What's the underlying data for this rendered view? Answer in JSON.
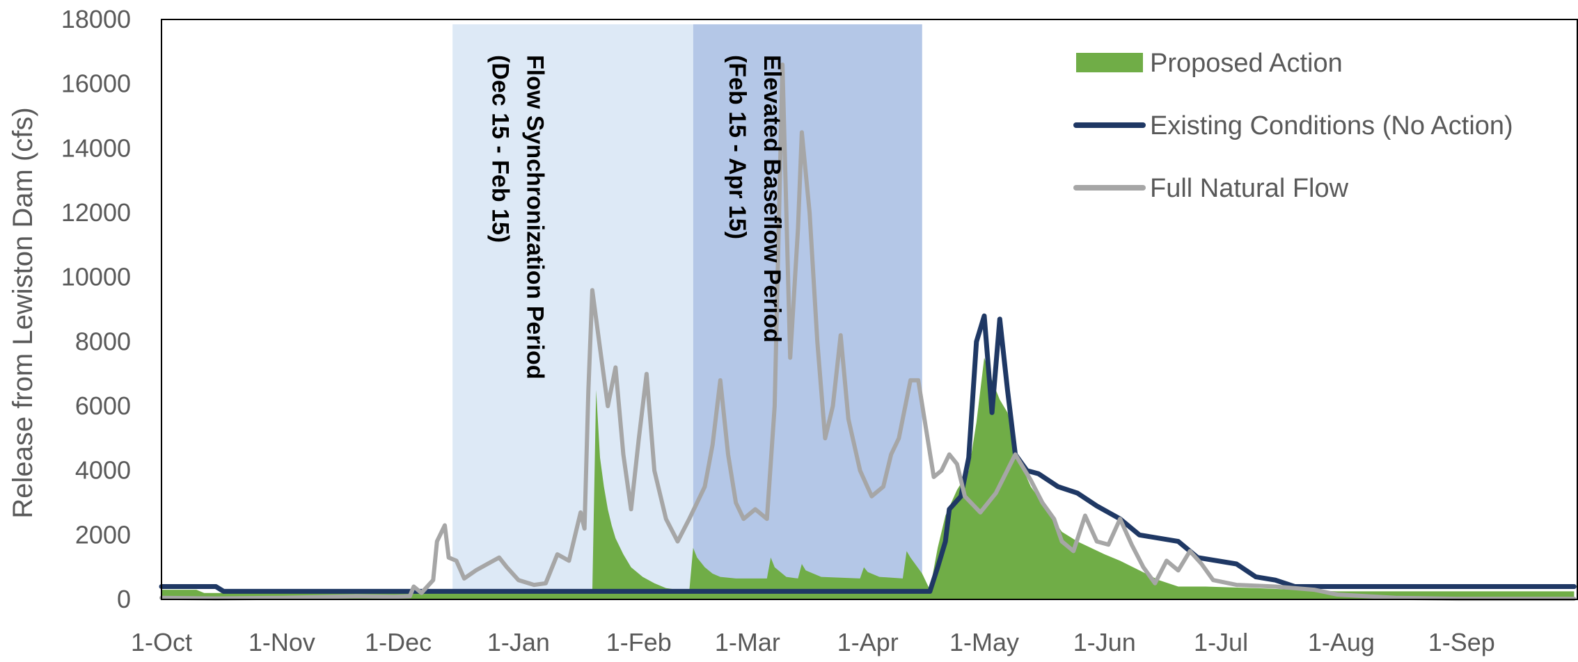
{
  "chart_data": {
    "type": "area",
    "title": "",
    "xlabel": "",
    "ylabel": "Release from Lewiston Dam (cfs)",
    "ylim": [
      0,
      18000
    ],
    "yticks": [
      0,
      2000,
      4000,
      6000,
      8000,
      10000,
      12000,
      14000,
      16000,
      18000
    ],
    "xlim": [
      "1-Oct",
      "30-Sep"
    ],
    "xtick_labels": [
      "1-Oct",
      "1-Nov",
      "1-Dec",
      "1-Jan",
      "1-Feb",
      "1-Mar",
      "1-Apr",
      "1-May",
      "1-Jun",
      "1-Jul",
      "1-Aug",
      "1-Sep"
    ],
    "grid": false,
    "legend_position": "top-right",
    "shaded_periods": [
      {
        "label_line1": "Flow Synchronization Period",
        "label_line2": "(Dec 15 - Feb 15)",
        "start": "15-Dec",
        "end": "15-Feb",
        "color": "#dde9f6"
      },
      {
        "label_line1": "Elevated Baseflow Period",
        "label_line2": "(Feb 15 - Apr 15)",
        "start": "15-Feb",
        "end": "15-Apr",
        "color": "#b4c7e7"
      }
    ],
    "series": [
      {
        "name": "Proposed Action",
        "kind": "area",
        "color": "#70ad47",
        "points": [
          [
            "1-Oct",
            300
          ],
          [
            "10-Oct",
            300
          ],
          [
            "12-Oct",
            200
          ],
          [
            "20-Jan",
            200
          ],
          [
            "21-Jan",
            6500
          ],
          [
            "22-Jan",
            4400
          ],
          [
            "23-Jan",
            3500
          ],
          [
            "24-Jan",
            2800
          ],
          [
            "25-Jan",
            2300
          ],
          [
            "26-Jan",
            1900
          ],
          [
            "28-Jan",
            1400
          ],
          [
            "30-Jan",
            1000
          ],
          [
            "2-Feb",
            700
          ],
          [
            "5-Feb",
            500
          ],
          [
            "8-Feb",
            350
          ],
          [
            "14-Feb",
            250
          ],
          [
            "15-Feb",
            1600
          ],
          [
            "16-Feb",
            1300
          ],
          [
            "18-Feb",
            1000
          ],
          [
            "20-Feb",
            800
          ],
          [
            "22-Feb",
            700
          ],
          [
            "26-Feb",
            650
          ],
          [
            "3-Mar",
            650
          ],
          [
            "6-Mar",
            650
          ],
          [
            "7-Mar",
            1300
          ],
          [
            "8-Mar",
            1000
          ],
          [
            "11-Mar",
            700
          ],
          [
            "14-Mar",
            650
          ],
          [
            "15-Mar",
            1100
          ],
          [
            "16-Mar",
            900
          ],
          [
            "20-Mar",
            700
          ],
          [
            "30-Mar",
            650
          ],
          [
            "31-Mar",
            1000
          ],
          [
            "1-Apr",
            850
          ],
          [
            "4-Apr",
            700
          ],
          [
            "10-Apr",
            650
          ],
          [
            "11-Apr",
            1500
          ],
          [
            "12-Apr",
            1300
          ],
          [
            "15-Apr",
            800
          ],
          [
            "17-Apr",
            300
          ],
          [
            "19-Apr",
            1600
          ],
          [
            "21-Apr",
            2600
          ],
          [
            "24-Apr",
            3400
          ],
          [
            "27-Apr",
            4000
          ],
          [
            "29-Apr",
            5500
          ],
          [
            "1-May",
            7500
          ],
          [
            "3-May",
            6800
          ],
          [
            "5-May",
            6200
          ],
          [
            "7-May",
            5800
          ],
          [
            "10-May",
            4300
          ],
          [
            "13-May",
            3500
          ],
          [
            "17-May",
            2800
          ],
          [
            "21-May",
            2100
          ],
          [
            "25-May",
            1800
          ],
          [
            "1-Jun",
            1400
          ],
          [
            "5-Jun",
            1200
          ],
          [
            "10-Jun",
            900
          ],
          [
            "15-Jun",
            600
          ],
          [
            "20-Jun",
            400
          ],
          [
            "27-Jun",
            400
          ],
          [
            "10-Jul",
            350
          ],
          [
            "20-Jul",
            300
          ],
          [
            "31-Jul",
            250
          ],
          [
            "30-Sep",
            250
          ]
        ]
      },
      {
        "name": "Existing Conditions (No Action)",
        "kind": "line",
        "color": "#1f3864",
        "points": [
          [
            "1-Oct",
            400
          ],
          [
            "15-Oct",
            400
          ],
          [
            "17-Oct",
            250
          ],
          [
            "17-Apr",
            250
          ],
          [
            "19-Apr",
            1000
          ],
          [
            "21-Apr",
            1800
          ],
          [
            "22-Apr",
            2800
          ],
          [
            "25-Apr",
            3200
          ],
          [
            "27-Apr",
            4400
          ],
          [
            "29-Apr",
            8000
          ],
          [
            "1-May",
            8800
          ],
          [
            "3-May",
            5800
          ],
          [
            "5-May",
            8700
          ],
          [
            "7-May",
            6500
          ],
          [
            "9-May",
            4500
          ],
          [
            "12-May",
            4000
          ],
          [
            "15-May",
            3900
          ],
          [
            "20-May",
            3500
          ],
          [
            "25-May",
            3300
          ],
          [
            "30-May",
            2900
          ],
          [
            "5-Jun",
            2500
          ],
          [
            "10-Jun",
            2000
          ],
          [
            "20-Jun",
            1800
          ],
          [
            "25-Jun",
            1300
          ],
          [
            "5-Jul",
            1100
          ],
          [
            "10-Jul",
            700
          ],
          [
            "15-Jul",
            600
          ],
          [
            "20-Jul",
            400
          ],
          [
            "31-Jul",
            400
          ],
          [
            "30-Sep",
            400
          ]
        ]
      },
      {
        "name": "Full Natural Flow",
        "kind": "line",
        "color": "#a6a6a6",
        "points": [
          [
            "1-Oct",
            50
          ],
          [
            "15-Oct",
            30
          ],
          [
            "1-Nov",
            50
          ],
          [
            "20-Nov",
            100
          ],
          [
            "30-Nov",
            80
          ],
          [
            "4-Dec",
            100
          ],
          [
            "5-Dec",
            400
          ],
          [
            "7-Dec",
            200
          ],
          [
            "10-Dec",
            600
          ],
          [
            "11-Dec",
            1800
          ],
          [
            "13-Dec",
            2300
          ],
          [
            "14-Dec",
            1300
          ],
          [
            "16-Dec",
            1200
          ],
          [
            "18-Dec",
            650
          ],
          [
            "21-Dec",
            900
          ],
          [
            "24-Dec",
            1100
          ],
          [
            "27-Dec",
            1300
          ],
          [
            "29-Dec",
            1000
          ],
          [
            "1-Jan",
            600
          ],
          [
            "5-Jan",
            450
          ],
          [
            "8-Jan",
            500
          ],
          [
            "11-Jan",
            1400
          ],
          [
            "14-Jan",
            1200
          ],
          [
            "17-Jan",
            2700
          ],
          [
            "18-Jan",
            2200
          ],
          [
            "19-Jan",
            6500
          ],
          [
            "20-Jan",
            9600
          ],
          [
            "22-Jan",
            7800
          ],
          [
            "24-Jan",
            6000
          ],
          [
            "26-Jan",
            7200
          ],
          [
            "28-Jan",
            4500
          ],
          [
            "30-Jan",
            2800
          ],
          [
            "1-Feb",
            5000
          ],
          [
            "3-Feb",
            7000
          ],
          [
            "5-Feb",
            4000
          ],
          [
            "8-Feb",
            2500
          ],
          [
            "11-Feb",
            1800
          ],
          [
            "14-Feb",
            2500
          ],
          [
            "16-Feb",
            3000
          ],
          [
            "18-Feb",
            3500
          ],
          [
            "20-Feb",
            4800
          ],
          [
            "22-Feb",
            6800
          ],
          [
            "24-Feb",
            4500
          ],
          [
            "26-Feb",
            3000
          ],
          [
            "28-Feb",
            2500
          ],
          [
            "3-Mar",
            2800
          ],
          [
            "6-Mar",
            2500
          ],
          [
            "8-Mar",
            6000
          ],
          [
            "10-Mar",
            16600
          ],
          [
            "12-Mar",
            7500
          ],
          [
            "14-Mar",
            11500
          ],
          [
            "15-Mar",
            14500
          ],
          [
            "17-Mar",
            12000
          ],
          [
            "19-Mar",
            8000
          ],
          [
            "21-Mar",
            5000
          ],
          [
            "23-Mar",
            6000
          ],
          [
            "25-Mar",
            8200
          ],
          [
            "27-Mar",
            5600
          ],
          [
            "30-Mar",
            4000
          ],
          [
            "2-Apr",
            3200
          ],
          [
            "5-Apr",
            3500
          ],
          [
            "7-Apr",
            4500
          ],
          [
            "9-Apr",
            5000
          ],
          [
            "12-Apr",
            6800
          ],
          [
            "14-Apr",
            6800
          ],
          [
            "16-Apr",
            5300
          ],
          [
            "18-Apr",
            3800
          ],
          [
            "20-Apr",
            4000
          ],
          [
            "22-Apr",
            4500
          ],
          [
            "24-Apr",
            4200
          ],
          [
            "26-Apr",
            3200
          ],
          [
            "30-Apr",
            2700
          ],
          [
            "4-May",
            3300
          ],
          [
            "9-May",
            4500
          ],
          [
            "13-May",
            3700
          ],
          [
            "16-May",
            3000
          ],
          [
            "19-May",
            2500
          ],
          [
            "21-May",
            1800
          ],
          [
            "24-May",
            1500
          ],
          [
            "27-May",
            2600
          ],
          [
            "30-May",
            1800
          ],
          [
            "2-Jun",
            1700
          ],
          [
            "5-Jun",
            2500
          ],
          [
            "8-Jun",
            1700
          ],
          [
            "11-Jun",
            1000
          ],
          [
            "14-Jun",
            500
          ],
          [
            "17-Jun",
            1200
          ],
          [
            "20-Jun",
            900
          ],
          [
            "23-Jun",
            1500
          ],
          [
            "26-Jun",
            1100
          ],
          [
            "29-Jun",
            600
          ],
          [
            "5-Jul",
            450
          ],
          [
            "15-Jul",
            400
          ],
          [
            "25-Jul",
            300
          ],
          [
            "31-Jul",
            150
          ],
          [
            "15-Aug",
            50
          ],
          [
            "31-Aug",
            20
          ],
          [
            "30-Sep",
            20
          ]
        ]
      }
    ]
  }
}
